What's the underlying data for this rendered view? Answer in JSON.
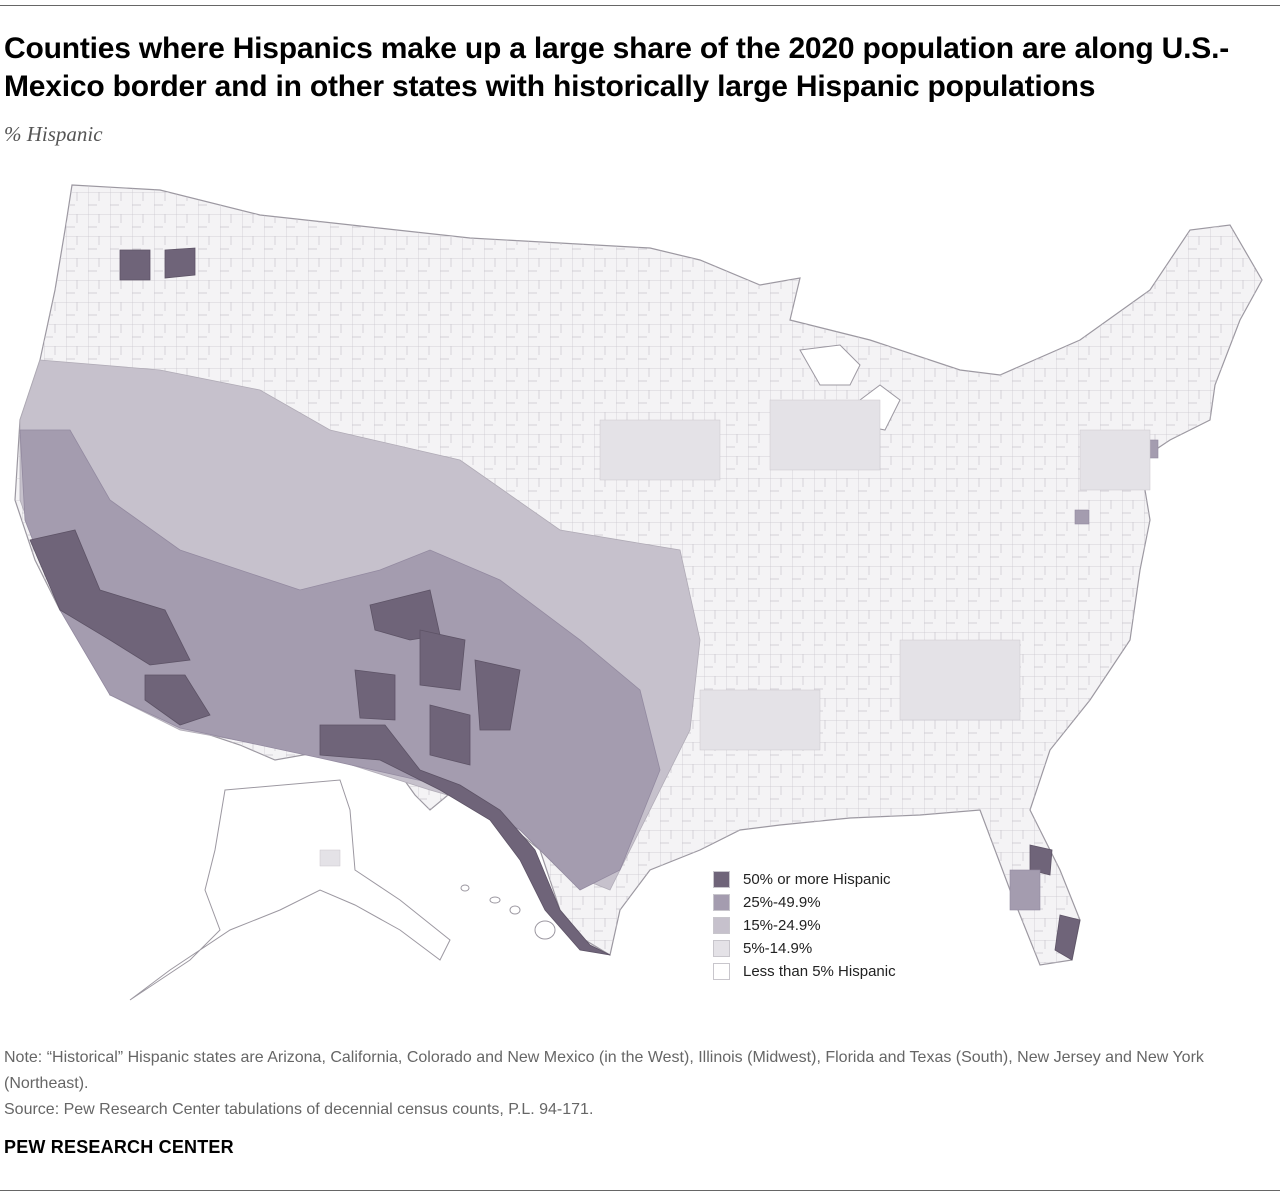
{
  "title": "Counties where Hispanics make up a large share of the 2020 population are along U.S.-Mexico border and in other states with historically large Hispanic populations",
  "subtitle": "% Hispanic",
  "legend": {
    "items": [
      {
        "label": "50% or more Hispanic",
        "color": "#6f6479"
      },
      {
        "label": "25%-49.9%",
        "color": "#a49caf"
      },
      {
        "label": "15%-24.9%",
        "color": "#c6c1cc"
      },
      {
        "label": "5%-14.9%",
        "color": "#e4e2e7"
      },
      {
        "label": "Less than 5% Hispanic",
        "color": "#ffffff"
      }
    ]
  },
  "note": "Note: “Historical” Hispanic states are Arizona, California, Colorado and New Mexico (in the West), Illinois (Midwest), Florida and Texas (South), New Jersey and New York (Northeast).",
  "source": "Source: Pew Research Center tabulations of decennial census counts, P.L. 94-171.",
  "footer": "PEW RESEARCH CENTER",
  "colors": {
    "border": "#b9b6bd",
    "background": "#ffffff"
  }
}
